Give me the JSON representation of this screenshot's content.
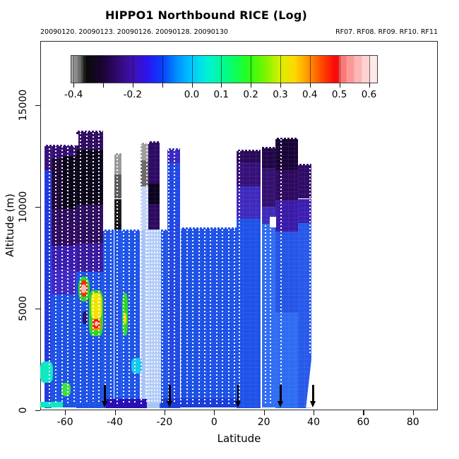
{
  "title": "HIPPO1 Northbound RICE (Log)",
  "subtitle_left": "20090120. 20090123. 20090126. 20090128. 20090130",
  "subtitle_right": "RF07. RF08. RF09. RF10. RF11",
  "chart_data": {
    "type": "heatmap",
    "title": "HIPPO1 Northbound RICE (Log)",
    "xlabel": "Latitude",
    "ylabel": "Altitude (m)",
    "xlim": [
      -70,
      90
    ],
    "ylim": [
      0,
      18160
    ],
    "x_ticks": [
      -60,
      -40,
      -20,
      0,
      20,
      40,
      60,
      80
    ],
    "y_ticks": [
      0,
      5000,
      10000,
      15000
    ],
    "grid": false,
    "legend_position": "top-inside",
    "colorbar": {
      "vmin": -0.41,
      "vmax": 0.63,
      "ticks": [
        -0.4,
        -0.3,
        -0.2,
        -0.1,
        0.0,
        0.1,
        0.2,
        0.3,
        0.4,
        0.5,
        0.6
      ],
      "tick_labels": [
        "-0.4",
        "",
        "-0.2",
        "",
        "0.0",
        "0.1",
        "0.2",
        "0.3",
        "0.4",
        "0.5",
        "0.6"
      ],
      "stops": [
        [
          -0.41,
          "#A2A2A2"
        ],
        [
          -0.398,
          "#A2A2A2"
        ],
        [
          -0.398,
          "#8A8A8A"
        ],
        [
          -0.388,
          "#8A8A8A"
        ],
        [
          -0.388,
          "#6E6E6E"
        ],
        [
          -0.378,
          "#6E6E6E"
        ],
        [
          -0.378,
          "#4A4A4A"
        ],
        [
          -0.37,
          "#4A4A4A"
        ],
        [
          -0.37,
          "#262626"
        ],
        [
          -0.356,
          "#0A0A0A"
        ],
        [
          -0.3,
          "#1C0338"
        ],
        [
          -0.25,
          "#320A72"
        ],
        [
          -0.2,
          "#3F10B4"
        ],
        [
          -0.15,
          "#2A14F0"
        ],
        [
          -0.1,
          "#0840FF"
        ],
        [
          -0.05,
          "#0090FF"
        ],
        [
          0.0,
          "#00C8FF"
        ],
        [
          0.05,
          "#00F0D8"
        ],
        [
          0.1,
          "#00FA9B"
        ],
        [
          0.15,
          "#0DFF55"
        ],
        [
          0.2,
          "#30FF10"
        ],
        [
          0.25,
          "#7CF400"
        ],
        [
          0.3,
          "#D8F000"
        ],
        [
          0.35,
          "#FFD800"
        ],
        [
          0.4,
          "#FF9000"
        ],
        [
          0.45,
          "#FF3C00"
        ],
        [
          0.485,
          "#FA0A0A"
        ],
        [
          0.5,
          "#FA0A0A"
        ],
        [
          0.5,
          "#FC7878"
        ],
        [
          0.526,
          "#FC7878"
        ],
        [
          0.526,
          "#FD9898"
        ],
        [
          0.552,
          "#FD9898"
        ],
        [
          0.552,
          "#FDB6B6"
        ],
        [
          0.578,
          "#FDB6B6"
        ],
        [
          0.578,
          "#FED2D2"
        ],
        [
          0.604,
          "#FED2D2"
        ],
        [
          0.604,
          "#FEE9E9"
        ],
        [
          0.63,
          "#FEE9E9"
        ]
      ]
    },
    "arrows_lat": [
      -44.0,
      -17.9,
      9.6,
      26.8,
      39.8
    ],
    "white_line": {
      "lat": 18.75,
      "alt_bottom": 120,
      "alt_top": 12900
    },
    "cells": [
      [
        -68.2,
        -65.5,
        13050,
        11800,
        "#36107A"
      ],
      [
        -68.2,
        -65.5,
        11800,
        120,
        "#2038DC"
      ],
      [
        -65.5,
        -61.1,
        13050,
        12400,
        "#310D70"
      ],
      [
        -65.5,
        -61.1,
        12400,
        9900,
        "#1C0538"
      ],
      [
        -65.5,
        -61.1,
        9900,
        8100,
        "#2C0A5E"
      ],
      [
        -65.5,
        -61.1,
        8100,
        6900,
        "#381CB0"
      ],
      [
        -65.5,
        -61.1,
        6900,
        5700,
        "#3D28C4"
      ],
      [
        -65.5,
        -61.1,
        5700,
        120,
        "#1C50E6"
      ],
      [
        -61.1,
        -55.4,
        13050,
        12500,
        "#310D70"
      ],
      [
        -61.1,
        -55.4,
        12500,
        9900,
        "#0A0218"
      ],
      [
        -61.1,
        -55.4,
        9900,
        8100,
        "#2C0A5E"
      ],
      [
        -61.1,
        -55.4,
        8100,
        6900,
        "#381CB0"
      ],
      [
        -61.1,
        -55.4,
        6900,
        5700,
        "#3D28C4"
      ],
      [
        -61.1,
        -55.4,
        5700,
        120,
        "#1C50E6"
      ],
      [
        -55.4,
        -44.6,
        13760,
        12800,
        "#2E0A5F"
      ],
      [
        -55.4,
        -44.6,
        12800,
        10100,
        "#0A0218"
      ],
      [
        -55.4,
        -44.6,
        10100,
        8200,
        "#2C0A5E"
      ],
      [
        -55.4,
        -44.6,
        8200,
        6800,
        "#38179E"
      ],
      [
        -55.4,
        -44.6,
        6800,
        120,
        "#1C50E6"
      ],
      [
        -44.6,
        -40.3,
        8890,
        120,
        "#1E53E8"
      ],
      [
        -40.3,
        -37.2,
        12630,
        11600,
        "#989898"
      ],
      [
        -40.3,
        -37.2,
        11600,
        10400,
        "#5A5A5A"
      ],
      [
        -40.3,
        -37.2,
        10400,
        9200,
        "#181818"
      ],
      [
        -40.3,
        -37.2,
        9200,
        8890,
        "#0E0E0E"
      ],
      [
        -40.3,
        -37.2,
        8890,
        120,
        "#1E53E8"
      ],
      [
        -37.2,
        -29.8,
        8890,
        120,
        "#1E53E8"
      ],
      [
        -29.8,
        -26.4,
        13160,
        12300,
        "#9E9E9E"
      ],
      [
        -29.8,
        -26.4,
        12300,
        11000,
        "#6A6A6A"
      ],
      [
        -29.8,
        -26.4,
        11000,
        8890,
        "#C4D4F6"
      ],
      [
        -29.8,
        -26.4,
        8890,
        120,
        "#A8C2F6"
      ],
      [
        -26.4,
        -21.9,
        13230,
        11150,
        "#2E0A64"
      ],
      [
        -26.4,
        -21.9,
        11150,
        10150,
        "#0C0220"
      ],
      [
        -26.4,
        -21.9,
        10150,
        8890,
        "#2C0A5E"
      ],
      [
        -26.4,
        -21.9,
        8890,
        120,
        "#A8C2F6"
      ],
      [
        -21.9,
        -18.8,
        8890,
        120,
        "#1E53E8"
      ],
      [
        -18.8,
        -13.6,
        12900,
        12150,
        "#3A28C0"
      ],
      [
        -18.8,
        -13.6,
        12150,
        120,
        "#2148E4"
      ],
      [
        -13.6,
        9.1,
        9000,
        120,
        "#1C50E6"
      ],
      [
        9.1,
        18.7,
        12810,
        12150,
        "#2A0A58"
      ],
      [
        9.1,
        18.7,
        12150,
        11000,
        "#36107A"
      ],
      [
        9.1,
        18.7,
        11000,
        9400,
        "#3E2ABE"
      ],
      [
        9.1,
        18.7,
        9400,
        120,
        "#1E52E8"
      ],
      [
        18.7,
        24.7,
        12950,
        11900,
        "#220549"
      ],
      [
        18.7,
        24.7,
        11900,
        10000,
        "#33106E"
      ],
      [
        18.7,
        24.7,
        10000,
        9170,
        "#3C2CB8"
      ],
      [
        18.7,
        24.7,
        9170,
        120,
        "#2E6CF2"
      ],
      [
        24.7,
        33.8,
        13400,
        11800,
        "#190438"
      ],
      [
        24.7,
        33.8,
        11800,
        10300,
        "#2E0A5F"
      ],
      [
        24.7,
        33.8,
        10300,
        8800,
        "#3A1AA8"
      ],
      [
        24.7,
        33.8,
        8800,
        4800,
        "#2455E6"
      ],
      [
        24.7,
        33.8,
        4800,
        120,
        "#2E6CF2"
      ],
      [
        33.8,
        39.2,
        12120,
        10400,
        "#2F0C66"
      ],
      [
        33.8,
        39.2,
        10400,
        9200,
        "#3C1FB0"
      ],
      [
        33.8,
        39.2,
        9200,
        120,
        "#2759EA"
      ]
    ],
    "blobs": [
      [
        -27.9,
        -21.4,
        350,
        8890,
        "#B2CBF8",
        0,
        "dots"
      ],
      [
        -43.5,
        -27.2,
        120,
        560,
        "#2A10B4",
        0,
        ""
      ],
      [
        -21.4,
        9.3,
        120,
        600,
        "#1A3ED8",
        0,
        ""
      ],
      [
        -69.9,
        -61.0,
        120,
        430,
        "#10E8C2",
        0,
        ""
      ],
      [
        -69.9,
        -64.8,
        1350,
        2400,
        "#10E8C2",
        30,
        ""
      ],
      [
        -61.4,
        -57.9,
        700,
        1350,
        "#3CE040",
        40,
        ""
      ],
      [
        -54.8,
        -50.2,
        5350,
        6550,
        "#2FD42A",
        40,
        ""
      ],
      [
        -53.9,
        -51.0,
        5580,
        6380,
        "#F03000",
        40,
        ""
      ],
      [
        -53.4,
        -51.6,
        5760,
        6180,
        "#FFB4B4",
        40,
        ""
      ],
      [
        -53.0,
        -51.2,
        4230,
        4870,
        "#2E1270",
        30,
        ""
      ],
      [
        -50.3,
        -44.7,
        3650,
        5900,
        "#2FD42A",
        25,
        ""
      ],
      [
        -49.6,
        -45.3,
        4480,
        5780,
        "#F2E400",
        25,
        ""
      ],
      [
        -49.4,
        -45.5,
        3930,
        4520,
        "#FA8C00",
        30,
        ""
      ],
      [
        -49.0,
        -46.0,
        4030,
        4480,
        "#EE2000",
        35,
        ""
      ],
      [
        -48.2,
        -46.7,
        4130,
        4380,
        "#FFC0C0",
        45,
        ""
      ],
      [
        -37.1,
        -34.7,
        3680,
        5780,
        "#2FD42A",
        30,
        ""
      ],
      [
        -36.5,
        -35.3,
        4230,
        4780,
        "#F0E000",
        40,
        ""
      ],
      [
        -33.3,
        -29.1,
        1800,
        2560,
        "#18C8F0",
        35,
        ""
      ],
      [
        22.3,
        24.9,
        8980,
        9520,
        "#FFFFFF",
        0,
        ""
      ],
      [
        -57.1,
        -54.7,
        13020,
        13580,
        "#FFFFFF",
        0,
        ""
      ],
      [
        36.9,
        39.25,
        120,
        2650,
        "#FFFFFF",
        0,
        "tri"
      ]
    ],
    "tops": [
      [
        -68.2,
        -55.4,
        13050
      ],
      [
        -55.4,
        -44.6,
        13760
      ],
      [
        -44.6,
        -40.3,
        8890
      ],
      [
        -40.3,
        -37.2,
        12630
      ],
      [
        -37.2,
        -29.8,
        8890
      ],
      [
        -29.8,
        -26.4,
        13160
      ],
      [
        -26.4,
        -21.9,
        13230
      ],
      [
        -21.9,
        -18.8,
        8890
      ],
      [
        -18.8,
        -13.6,
        12900
      ],
      [
        -13.6,
        9.1,
        9000
      ],
      [
        9.1,
        18.7,
        12810
      ],
      [
        18.7,
        24.7,
        12950
      ],
      [
        24.7,
        33.8,
        13400
      ],
      [
        33.8,
        39.2,
        12120
      ]
    ],
    "tracks": [
      [
        -66.3,
        300,
        12900
      ],
      [
        -63.8,
        300,
        12950
      ],
      [
        -61.3,
        300,
        13000
      ],
      [
        -58.8,
        300,
        13600
      ],
      [
        -56.3,
        300,
        13680
      ],
      [
        -53.8,
        300,
        13650
      ],
      [
        -51.3,
        400,
        13680
      ],
      [
        -48.8,
        400,
        13650
      ],
      [
        -46.3,
        400,
        13680
      ],
      [
        -44.0,
        300,
        8800
      ],
      [
        -41.6,
        300,
        8800
      ],
      [
        -39.0,
        300,
        12550
      ],
      [
        -36.6,
        300,
        8800
      ],
      [
        -34.2,
        300,
        8800
      ],
      [
        -31.8,
        300,
        8800
      ],
      [
        -29.3,
        300,
        13050
      ],
      [
        -27.0,
        300,
        13150
      ],
      [
        -20.9,
        300,
        8800
      ],
      [
        -18.3,
        300,
        12830
      ],
      [
        -16.0,
        300,
        12830
      ],
      [
        -13.4,
        300,
        8900
      ],
      [
        -11.0,
        300,
        8900
      ],
      [
        -8.6,
        300,
        8900
      ],
      [
        -6.2,
        300,
        8900
      ],
      [
        -3.8,
        300,
        8900
      ],
      [
        -1.4,
        300,
        8900
      ],
      [
        1.0,
        300,
        8900
      ],
      [
        3.4,
        300,
        8900
      ],
      [
        5.8,
        300,
        8900
      ],
      [
        8.2,
        300,
        8900
      ],
      [
        10.0,
        300,
        12750
      ],
      [
        20.6,
        300,
        9100
      ],
      [
        22.6,
        300,
        9100
      ],
      [
        26.8,
        300,
        13350
      ],
      [
        38.5,
        2700,
        11900
      ]
    ]
  }
}
